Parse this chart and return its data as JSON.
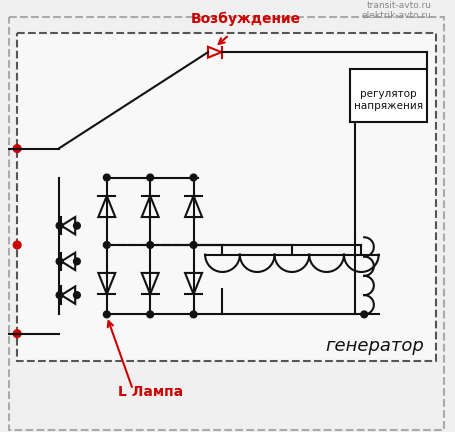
{
  "bg_color": "#f0f0f0",
  "inner_bg": "#f5f5f5",
  "border_color": "#555555",
  "line_color": "#111111",
  "red_color": "#cc0000",
  "label_generator": "генератор",
  "label_regulator": "регулятор\nнапряжения",
  "label_lamp": "L Лампа",
  "label_excitation": "Возбуждение",
  "label_site": "transit-avto.ru\nelektrik-avto.ru",
  "title": ""
}
